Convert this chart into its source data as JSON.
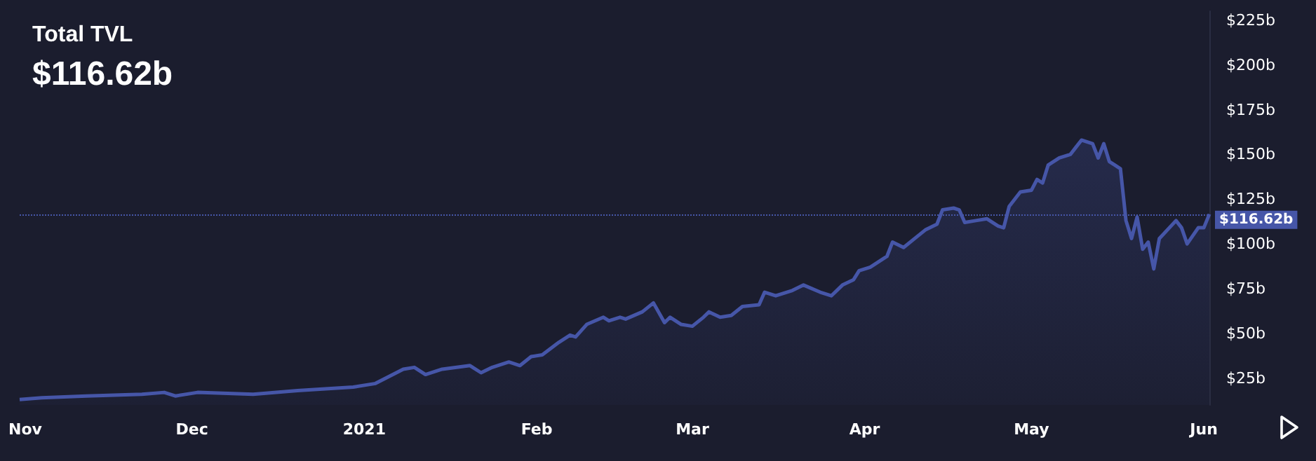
{
  "chart_data": {
    "type": "area",
    "title": "Total TVL",
    "subtitle": "$116.62b",
    "x": [
      "2020-10-31",
      "2020-11-04",
      "2020-11-12",
      "2020-11-22",
      "2020-11-26",
      "2020-11-28",
      "2020-12-02",
      "2020-12-12",
      "2020-12-20",
      "2020-12-30",
      "2021-01-03",
      "2021-01-08",
      "2021-01-10",
      "2021-01-12",
      "2021-01-15",
      "2021-01-20",
      "2021-01-22",
      "2021-01-24",
      "2021-01-27",
      "2021-01-29",
      "2021-01-31",
      "2021-02-02",
      "2021-02-05",
      "2021-02-07",
      "2021-02-08",
      "2021-02-10",
      "2021-02-13",
      "2021-02-14",
      "2021-02-16",
      "2021-02-17",
      "2021-02-20",
      "2021-02-22",
      "2021-02-24",
      "2021-02-25",
      "2021-02-27",
      "2021-03-01",
      "2021-03-03",
      "2021-03-04",
      "2021-03-06",
      "2021-03-08",
      "2021-03-10",
      "2021-03-13",
      "2021-03-14",
      "2021-03-16",
      "2021-03-19",
      "2021-03-21",
      "2021-03-24",
      "2021-03-26",
      "2021-03-28",
      "2021-03-30",
      "2021-03-31",
      "2021-04-02",
      "2021-04-05",
      "2021-04-06",
      "2021-04-08",
      "2021-04-10",
      "2021-04-12",
      "2021-04-14",
      "2021-04-15",
      "2021-04-17",
      "2021-04-18",
      "2021-04-19",
      "2021-04-21",
      "2021-04-23",
      "2021-04-25",
      "2021-04-26",
      "2021-04-27",
      "2021-04-29",
      "2021-05-01",
      "2021-05-02",
      "2021-05-03",
      "2021-05-04",
      "2021-05-06",
      "2021-05-08",
      "2021-05-09",
      "2021-05-10",
      "2021-05-12",
      "2021-05-13",
      "2021-05-14",
      "2021-05-15",
      "2021-05-16",
      "2021-05-17",
      "2021-05-18",
      "2021-05-19",
      "2021-05-20",
      "2021-05-21",
      "2021-05-22",
      "2021-05-23",
      "2021-05-24",
      "2021-05-27",
      "2021-05-28",
      "2021-05-29",
      "2021-05-31",
      "2021-06-01",
      "2021-06-02"
    ],
    "series": [
      {
        "color": "#4656a8",
        "values": [
          13,
          14,
          15,
          16,
          17,
          15,
          17,
          16,
          18,
          20,
          22,
          30,
          31,
          27,
          30,
          32,
          28,
          31,
          34,
          32,
          37,
          38,
          45,
          49,
          48,
          55,
          59,
          57,
          59,
          58,
          62,
          67,
          56,
          59,
          55,
          54,
          59,
          62,
          59,
          60,
          65,
          66,
          73,
          71,
          74,
          77,
          73,
          71,
          77,
          80,
          85,
          87,
          93,
          101,
          98,
          103,
          108,
          111,
          119,
          120,
          119,
          112,
          113,
          114,
          110,
          109,
          121,
          129,
          130,
          136,
          134,
          144,
          148,
          150,
          154,
          158,
          156,
          148,
          156,
          146,
          144,
          142,
          113,
          103,
          115,
          97,
          101,
          86,
          103,
          113,
          109,
          100,
          109,
          109,
          116.62
        ]
      }
    ],
    "xlim": [
      "2020-10-31",
      "2021-06-02"
    ],
    "xticks": [
      {
        "value": "2020-11-01",
        "label": "Nov"
      },
      {
        "value": "2020-12-01",
        "label": "Dec"
      },
      {
        "value": "2021-01-01",
        "label": "2021"
      },
      {
        "value": "2021-02-01",
        "label": "Feb"
      },
      {
        "value": "2021-03-01",
        "label": "Mar"
      },
      {
        "value": "2021-04-01",
        "label": "Apr"
      },
      {
        "value": "2021-05-01",
        "label": "May"
      },
      {
        "value": "2021-06-01",
        "label": "Jun"
      }
    ],
    "ylim": [
      10,
      230
    ],
    "yticks": [
      {
        "value": 25,
        "label": "$25b"
      },
      {
        "value": 50,
        "label": "$50b"
      },
      {
        "value": 75,
        "label": "$75b"
      },
      {
        "value": 100,
        "label": "$100b"
      },
      {
        "value": 125,
        "label": "$125b"
      },
      {
        "value": 150,
        "label": "$150b"
      },
      {
        "value": 175,
        "label": "$175b"
      },
      {
        "value": 200,
        "label": "$200b"
      },
      {
        "value": 225,
        "label": "$225b"
      }
    ],
    "ref_lines": [
      {
        "axis": "y",
        "value": 116.62,
        "label": "$116.62b",
        "color": "#4656a8",
        "line_style": "dotted"
      }
    ],
    "grid": false
  }
}
